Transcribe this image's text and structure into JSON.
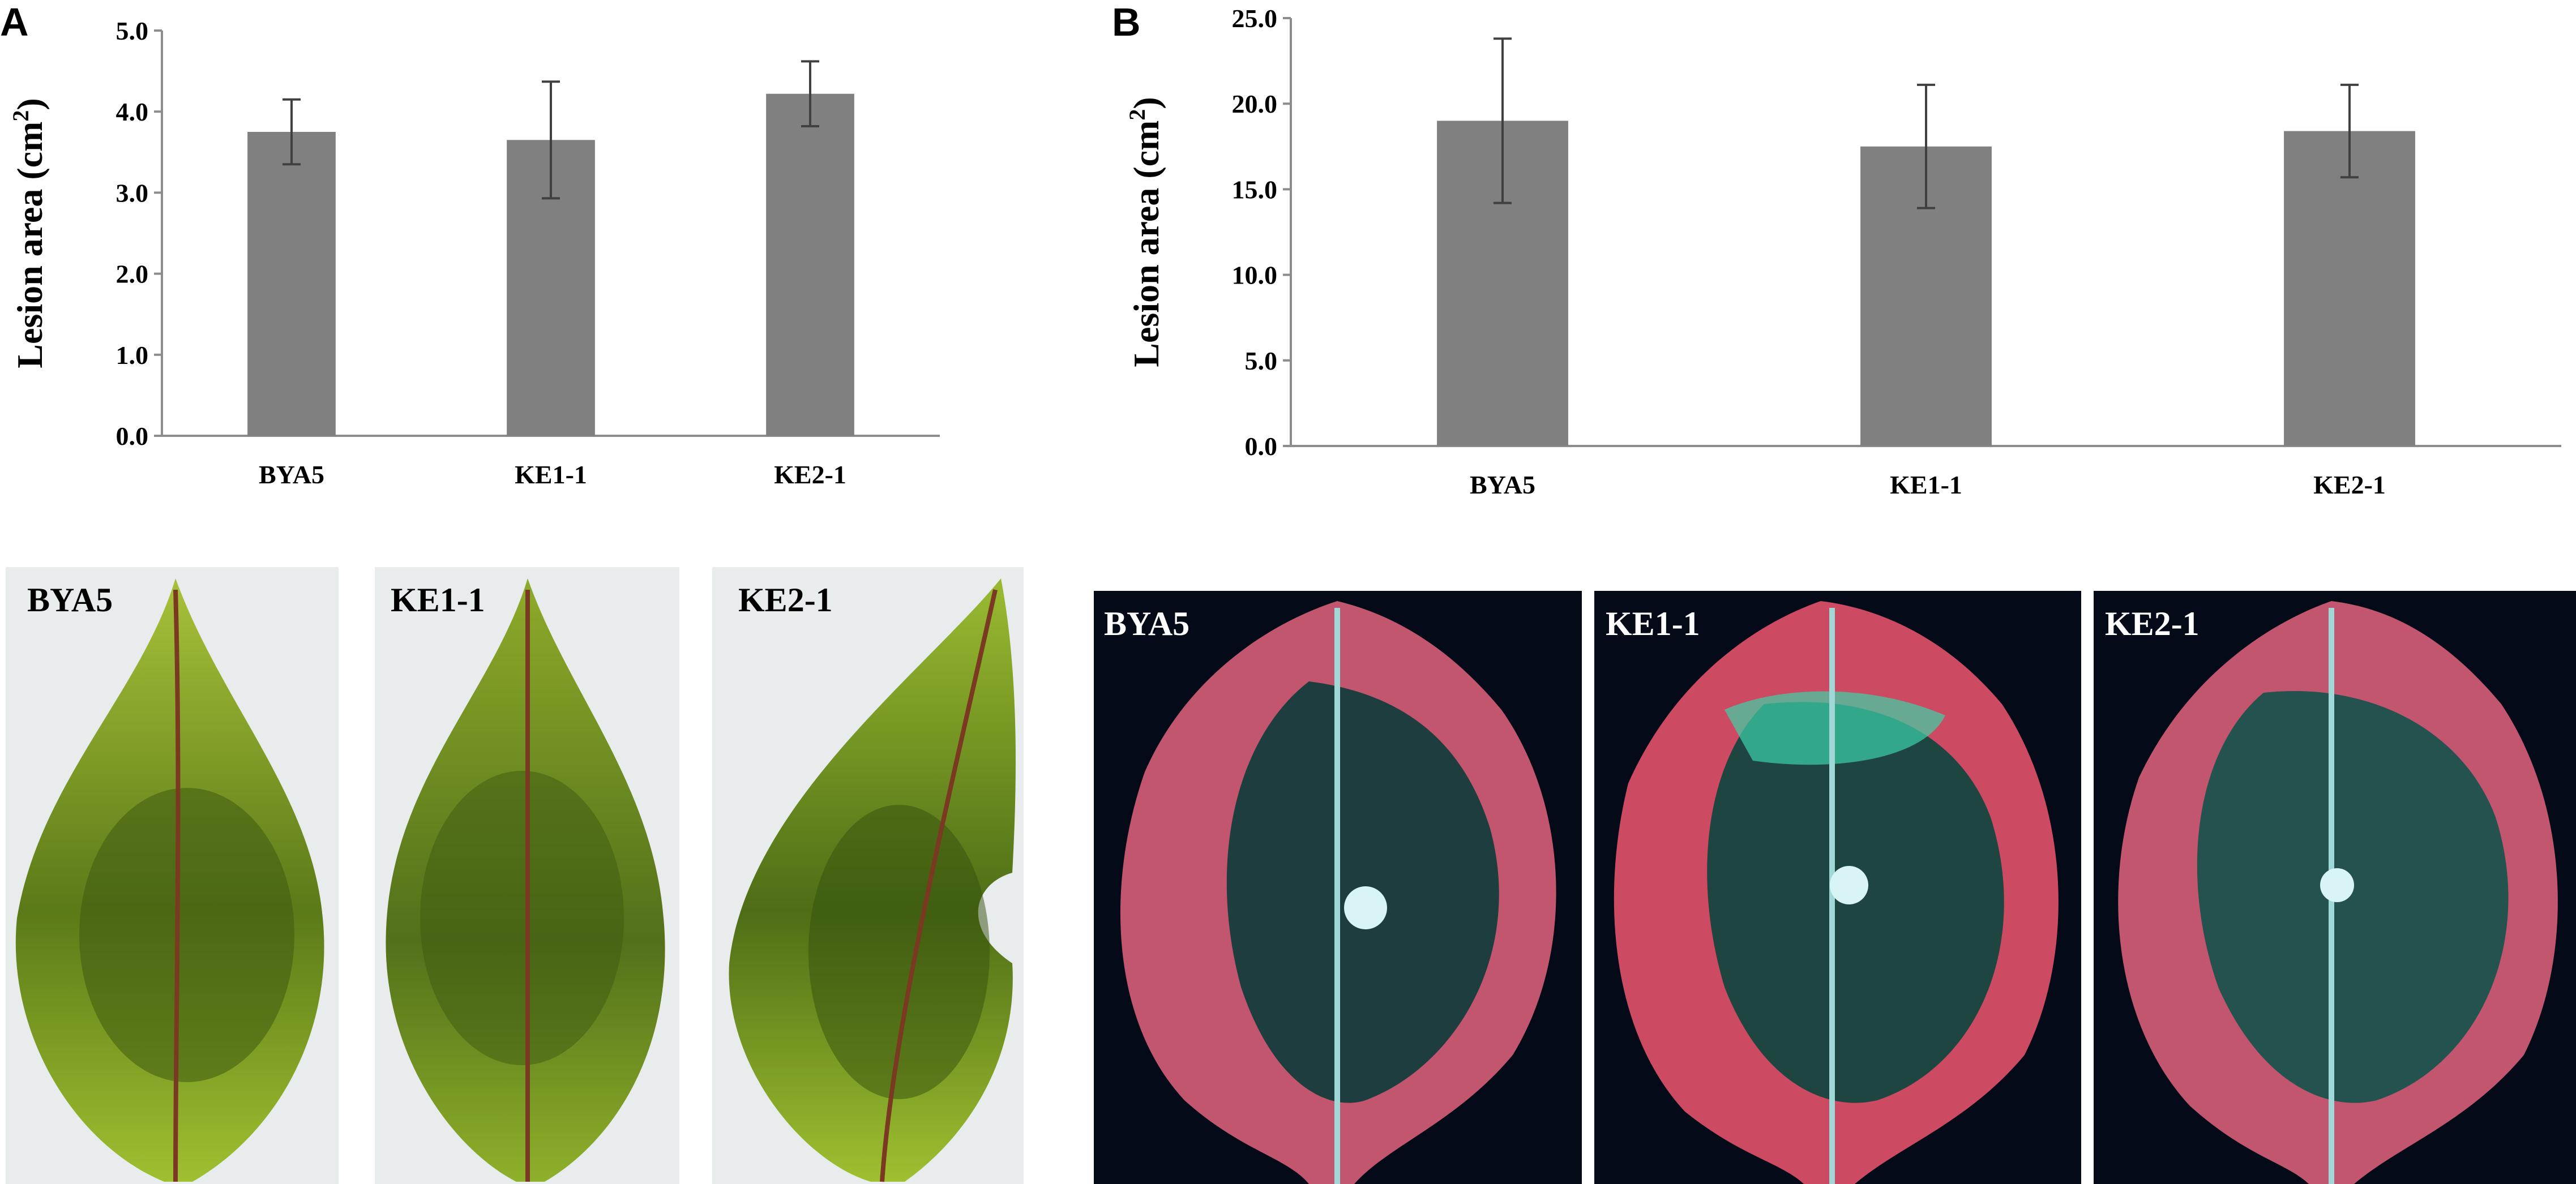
{
  "panels": {
    "a": {
      "letter": "A"
    },
    "b": {
      "letter": "B"
    }
  },
  "chart_data": [
    {
      "panel": "A",
      "type": "bar",
      "categories": [
        "BYA5",
        "KE1-1",
        "KE2-1"
      ],
      "values": [
        3.75,
        3.65,
        4.22
      ],
      "errors": [
        0.4,
        0.72,
        0.4
      ],
      "ylabel": "Lesion area (cm2)",
      "ylabel_main": "Lesion area (cm",
      "ylabel_sup": "2",
      "ylabel_close": ")",
      "ylim": [
        0,
        5
      ],
      "yticks": [
        "0.0",
        "1.0",
        "2.0",
        "3.0",
        "4.0",
        "5.0"
      ],
      "grid": false,
      "bar_color": "#808080"
    },
    {
      "panel": "B",
      "type": "bar",
      "categories": [
        "BYA5",
        "KE1-1",
        "KE2-1"
      ],
      "values": [
        19.0,
        17.5,
        18.4
      ],
      "errors": [
        4.8,
        3.6,
        2.7
      ],
      "ylabel": "Lesion area (cm2)",
      "ylabel_main": "Lesion area (cm",
      "ylabel_sup": "2",
      "ylabel_close": ")",
      "ylim": [
        0,
        25
      ],
      "yticks": [
        "0.0",
        "5.0",
        "10.0",
        "15.0",
        "20.0",
        "25.0"
      ],
      "grid": false,
      "bar_color": "#808080"
    }
  ],
  "photos_visible": {
    "labels": [
      "BYA5",
      "KE1-1",
      "KE2-1"
    ],
    "label_color": "#000000"
  },
  "photos_uv": {
    "labels": [
      "BYA5",
      "KE1-1",
      "KE2-1"
    ],
    "label_color": "#ffffff"
  }
}
